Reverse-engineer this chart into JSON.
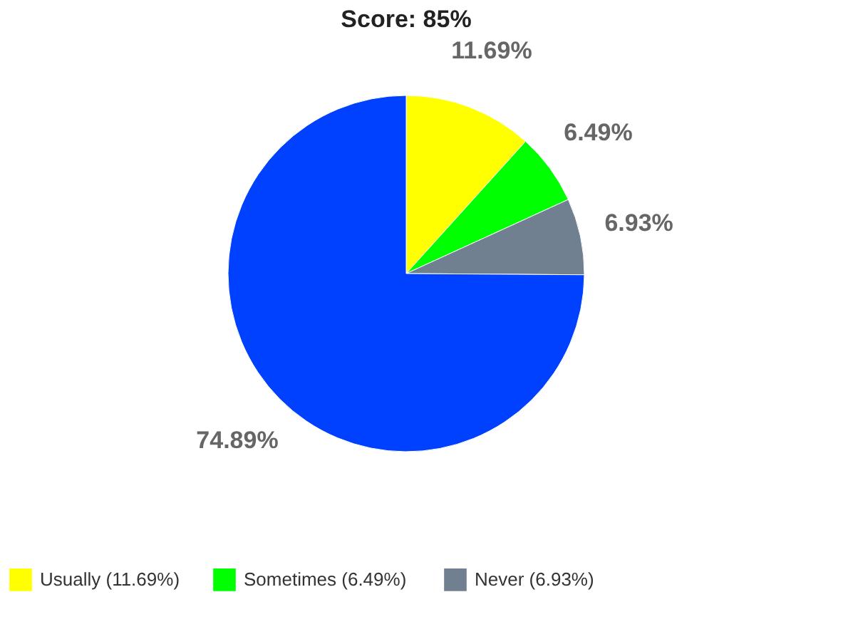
{
  "chart_data": {
    "type": "pie",
    "title": "Score: 85%",
    "categories": [
      "Usually (11.69%)",
      "Sometimes  (6.49%)",
      "Never (6.93%)",
      null
    ],
    "values": [
      11.69,
      6.49,
      6.93,
      74.89
    ],
    "value_labels": [
      "11.69%",
      "6.49%",
      "6.93%",
      "74.89%"
    ],
    "colors": [
      "#ffff00",
      "#00ff00",
      "#708090",
      "#0040ff"
    ],
    "legend": "bottom"
  }
}
